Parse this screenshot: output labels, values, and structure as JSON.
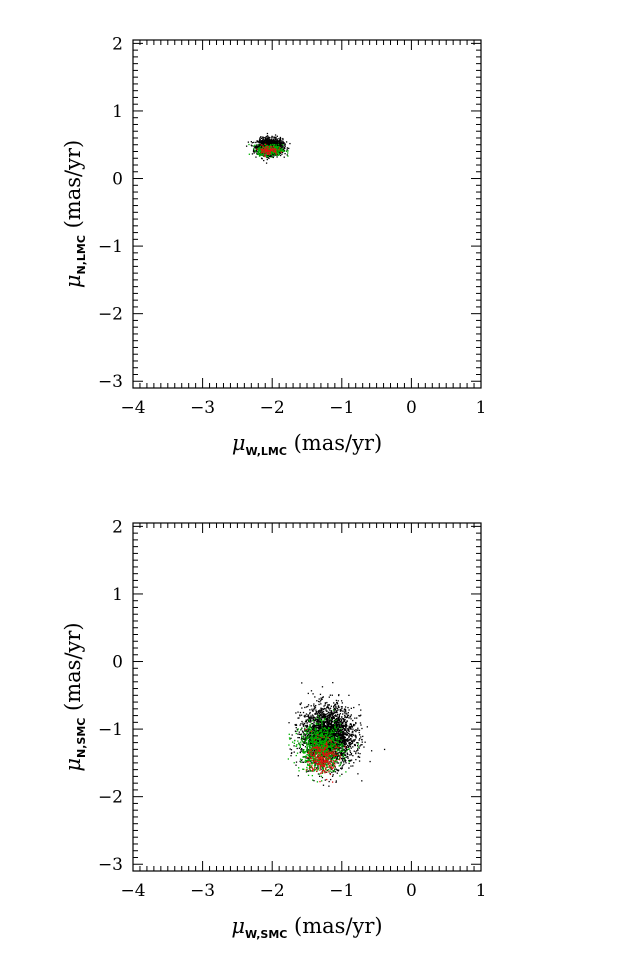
{
  "chart_data": [
    {
      "type": "scatter",
      "title": "",
      "xlim": [
        -4,
        1
      ],
      "ylim": [
        -3.1,
        2.05
      ],
      "x_ticks": [
        "-4",
        "-3",
        "-2",
        "-1",
        "0",
        "1"
      ],
      "y_ticks": [
        "2",
        "1",
        "0",
        "-1",
        "-2",
        "-3"
      ],
      "xlabel": {
        "symbol": "μ",
        "subscript": "W,LMC",
        "unit": " (mas/yr)"
      },
      "ylabel": {
        "symbol": "μ",
        "subscript": "N,LMC",
        "unit": " (mas/yr)"
      },
      "grid": false,
      "series": [
        {
          "color": "#000000",
          "center": [
            -2.03,
            0.47
          ],
          "spread": [
            0.09,
            0.06
          ],
          "count": 1500
        },
        {
          "color": "#00b000",
          "center": [
            -2.03,
            0.42
          ],
          "spread": [
            0.09,
            0.04
          ],
          "count": 350
        },
        {
          "color": "#e01010",
          "center": [
            -2.06,
            0.42
          ],
          "spread": [
            0.07,
            0.035
          ],
          "count": 90
        }
      ]
    },
    {
      "type": "scatter",
      "title": "",
      "xlim": [
        -4,
        1
      ],
      "ylim": [
        -3.1,
        2.05
      ],
      "x_ticks": [
        "-4",
        "-3",
        "-2",
        "-1",
        "0",
        "1"
      ],
      "y_ticks": [
        "2",
        "1",
        "0",
        "-1",
        "-2",
        "-3"
      ],
      "xlabel": {
        "symbol": "μ",
        "subscript": "W,SMC",
        "unit": " (mas/yr)"
      },
      "ylabel": {
        "symbol": "μ",
        "subscript": "N,SMC",
        "unit": " (mas/yr)"
      },
      "grid": false,
      "series": [
        {
          "color": "#000000",
          "center": [
            -1.2,
            -1.1
          ],
          "spread": [
            0.19,
            0.22
          ],
          "count": 2600
        },
        {
          "color": "#00b000",
          "center": [
            -1.3,
            -1.28
          ],
          "spread": [
            0.15,
            0.17
          ],
          "count": 900
        },
        {
          "color": "#e01010",
          "center": [
            -1.28,
            -1.42
          ],
          "spread": [
            0.1,
            0.13
          ],
          "count": 260
        }
      ]
    }
  ]
}
